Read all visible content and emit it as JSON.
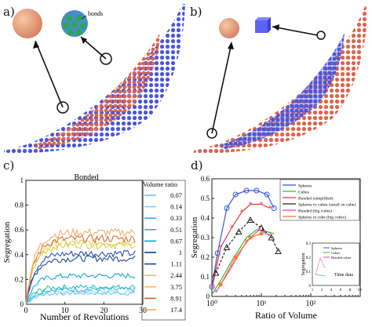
{
  "panels": {
    "a": {
      "label": "a)",
      "inset_label": "bonds"
    },
    "b": {
      "label": "b)"
    },
    "c": {
      "label": "c)"
    },
    "d": {
      "label": "d)"
    }
  },
  "colors": {
    "blue": "#4a55e0",
    "orange": "#e0634a",
    "sphere": "#efa07a",
    "cube": "#5b64f2"
  },
  "chart_data": [
    {
      "type": "line",
      "panel": "c",
      "title": "Bonded",
      "xlabel": "Number of Revolutions",
      "ylabel": "Segregation",
      "xlim": [
        0,
        30
      ],
      "ylim": [
        0,
        1
      ],
      "xticks": [
        "0",
        "10",
        "20",
        "30"
      ],
      "yticks": [
        "0",
        "0.2",
        "0.4",
        "0.6",
        "0.8",
        "1"
      ],
      "legend_title": "Volume ratio",
      "series": [
        {
          "name": "0.07",
          "color": "#6fc2e8",
          "final": 0.09
        },
        {
          "name": "0.14",
          "color": "#7fd0f0",
          "final": 0.1
        },
        {
          "name": "0.33",
          "color": "#33b6ea",
          "final": 0.12
        },
        {
          "name": "0.51",
          "color": "#1ac0b0",
          "final": 0.14
        },
        {
          "name": "0.67",
          "color": "#00a6d6",
          "final": 0.23
        },
        {
          "name": "1",
          "color": "#0d3b8a",
          "final": 0.37
        },
        {
          "name": "1.11",
          "color": "#2040b0",
          "final": 0.41
        },
        {
          "name": "2.44",
          "color": "#c8d630",
          "final": 0.48
        },
        {
          "name": "3.75",
          "color": "#f5c04a",
          "final": 0.5
        },
        {
          "name": "8.91",
          "color": "#d0642a",
          "final": 0.53
        },
        {
          "name": "17.4",
          "color": "#f4a860",
          "final": 0.58
        }
      ]
    },
    {
      "type": "line",
      "panel": "d",
      "xlabel": "Ratio of Volume",
      "ylabel": "Segregation",
      "xscale": "log",
      "xlim": [
        1,
        1000
      ],
      "ylim": [
        0,
        0.6
      ],
      "xticks": [
        "10⁰",
        "10¹",
        "10²"
      ],
      "yticks": [
        "0",
        "0.1",
        "0.2",
        "0.3",
        "0.4",
        "0.5",
        "0.6"
      ],
      "series": [
        {
          "name": "Spheres",
          "color": "#3355ee",
          "marker": "circle",
          "x": [
            1,
            1.3,
            2,
            3,
            5,
            8,
            13,
            18
          ],
          "y": [
            0.05,
            0.22,
            0.45,
            0.52,
            0.54,
            0.54,
            0.52,
            0.45
          ]
        },
        {
          "name": "Cubes",
          "color": "#2ac22a",
          "marker": "none",
          "x": [
            1,
            1.5,
            2.5,
            5,
            8,
            13,
            18
          ],
          "y": [
            0.01,
            0.08,
            0.18,
            0.3,
            0.34,
            0.33,
            0.32
          ]
        },
        {
          "name": "Bonded (simplified)",
          "color": "#ee3333",
          "marker": "star",
          "x": [
            1,
            1.5,
            2.5,
            4,
            6,
            10,
            15
          ],
          "y": [
            0.04,
            0.25,
            0.35,
            0.43,
            0.47,
            0.47,
            0.45
          ]
        },
        {
          "name": "Spheres vs cubes (small on cube)",
          "color": "#222222",
          "marker": "triangle",
          "x": [
            1.2,
            2,
            3.5,
            6,
            10,
            16,
            22
          ],
          "y": [
            0.12,
            0.25,
            0.33,
            0.39,
            0.35,
            0.3,
            0.23
          ]
        },
        {
          "name": "Bonded (big cubes)",
          "color": "#ee44aa",
          "marker": "star",
          "x": [
            1.2,
            2.5,
            5,
            9,
            15
          ],
          "y": [
            0.02,
            0.15,
            0.28,
            0.34,
            0.31
          ]
        },
        {
          "name": "Spheres in cube (big cubes)",
          "color": "#ff7722",
          "marker": "diamond",
          "x": [
            1.5,
            3,
            6,
            10
          ],
          "y": [
            0.06,
            0.2,
            0.3,
            0.32
          ]
        }
      ],
      "inset": {
        "ylabel": "Segregation",
        "xticks": [
          "1",
          "2",
          "4",
          "6",
          "8",
          "10"
        ],
        "yticks": [
          "0",
          "0.1",
          "0.2",
          "0.3"
        ],
        "legend": [
          "Spheres",
          "Cubes",
          "Bonded cubes"
        ],
        "note": "Time data"
      }
    }
  ]
}
